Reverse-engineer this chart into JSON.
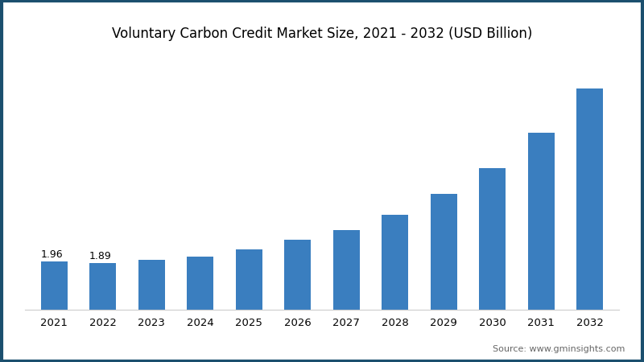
{
  "title": "Voluntary Carbon Credit Market Size, 2021 - 2032 (USD Billion)",
  "years": [
    2021,
    2022,
    2023,
    2024,
    2025,
    2026,
    2027,
    2028,
    2029,
    2030,
    2031,
    2032
  ],
  "values": [
    1.96,
    1.89,
    2.03,
    2.18,
    2.45,
    2.85,
    3.25,
    3.85,
    4.7,
    5.75,
    7.2,
    9.0
  ],
  "bar_color": "#3A7EBF",
  "label_values": {
    "2021": "1.96",
    "2022": "1.89"
  },
  "label_fontsize": 9,
  "title_fontsize": 12,
  "tick_fontsize": 9.5,
  "source_text": "Source: www.gminsights.com",
  "source_fontsize": 8,
  "background_color": "#FFFFFF",
  "border_color": "#1B4F6E",
  "ylim": [
    0,
    10.5
  ],
  "bar_width": 0.55,
  "figsize": [
    8.0,
    4.5
  ],
  "dpi": 100
}
